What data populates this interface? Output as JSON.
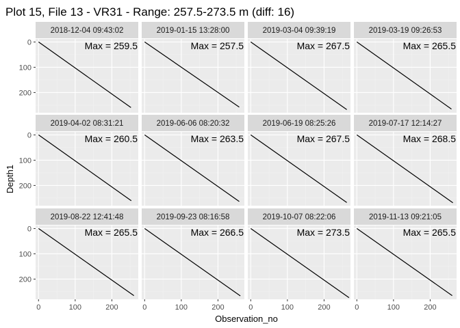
{
  "chart_data": {
    "type": "line",
    "title": "Plot 15, File 13 - VR31 - Range: 257.5-273.5 m (diff: 16)",
    "xlabel": "Observation_no",
    "ylabel": "Depth1",
    "xlim": [
      -8,
      272
    ],
    "ylim": [
      -12,
      280
    ],
    "y_reversed": true,
    "x_ticks": [
      0,
      100,
      200
    ],
    "y_ticks": [
      0,
      100,
      200
    ],
    "grid": true,
    "panel_background": "#ebebeb",
    "strip_background": "#d9d9d9",
    "line_color": "#000000",
    "annotation_prefix": "Max = ",
    "panels": [
      {
        "label": "2018-12-04 09:43:02",
        "max": 259.5,
        "x": [
          0,
          252
        ],
        "y": [
          0,
          259.5
        ],
        "annotation": "Max = 259.5"
      },
      {
        "label": "2019-01-15 13:28:00",
        "max": 257.5,
        "x": [
          0,
          258
        ],
        "y": [
          0,
          257.5
        ],
        "annotation": "Max = 257.5"
      },
      {
        "label": "2019-03-04 09:39:19",
        "max": 267.5,
        "x": [
          0,
          262
        ],
        "y": [
          0,
          267.5
        ],
        "annotation": "Max = 267.5"
      },
      {
        "label": "2019-03-19 09:26:53",
        "max": 265.5,
        "x": [
          0,
          258
        ],
        "y": [
          0,
          265.5
        ],
        "annotation": "Max = 265.5"
      },
      {
        "label": "2019-04-02 08:31:21",
        "max": 260.5,
        "x": [
          0,
          253
        ],
        "y": [
          0,
          260.5
        ],
        "annotation": "Max = 260.5"
      },
      {
        "label": "2019-06-06 08:20:32",
        "max": 263.5,
        "x": [
          0,
          258
        ],
        "y": [
          0,
          263.5
        ],
        "annotation": "Max = 263.5"
      },
      {
        "label": "2019-06-19 08:25:26",
        "max": 267.5,
        "x": [
          0,
          262
        ],
        "y": [
          0,
          267.5
        ],
        "annotation": "Max = 267.5"
      },
      {
        "label": "2019-07-17 12:14:27",
        "max": 268.5,
        "x": [
          0,
          262
        ],
        "y": [
          0,
          268.5
        ],
        "annotation": "Max = 268.5"
      },
      {
        "label": "2019-08-22 12:41:48",
        "max": 265.5,
        "x": [
          0,
          260
        ],
        "y": [
          0,
          265.5
        ],
        "annotation": "Max = 265.5"
      },
      {
        "label": "2019-09-23 08:16:58",
        "max": 266.5,
        "x": [
          0,
          261
        ],
        "y": [
          0,
          266.5
        ],
        "annotation": "Max = 266.5"
      },
      {
        "label": "2019-10-07 08:22:06",
        "max": 273.5,
        "x": [
          0,
          268
        ],
        "y": [
          0,
          273.5
        ],
        "annotation": "Max = 273.5"
      },
      {
        "label": "2019-11-13 09:21:05",
        "max": 265.5,
        "x": [
          0,
          260
        ],
        "y": [
          0,
          265.5
        ],
        "annotation": "Max = 265.5"
      }
    ]
  }
}
